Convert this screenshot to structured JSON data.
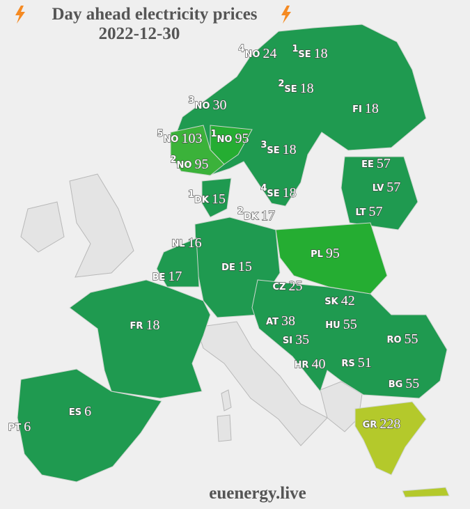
{
  "header": {
    "title": "Day ahead electricity prices",
    "date": "2022-12-30"
  },
  "footer": "euenergy.live",
  "zones": [
    {
      "sup": "4",
      "code": "NO",
      "price": "24"
    },
    {
      "sup": "1",
      "code": "SE",
      "price": "18"
    },
    {
      "sup": "2",
      "code": "SE",
      "price": "18"
    },
    {
      "sup": "3",
      "code": "NO",
      "price": "30"
    },
    {
      "code": "FI",
      "price": "18"
    },
    {
      "sup": "5",
      "code": "NO",
      "price": "103"
    },
    {
      "sup": "1",
      "code": "NO",
      "price": "95"
    },
    {
      "sup": "3",
      "code": "SE",
      "price": "18"
    },
    {
      "sup": "2",
      "code": "NO",
      "price": "95"
    },
    {
      "code": "EE",
      "price": "57"
    },
    {
      "code": "LV",
      "price": "57"
    },
    {
      "sup": "4",
      "code": "SE",
      "price": "18"
    },
    {
      "sup": "1",
      "code": "DK",
      "price": "15"
    },
    {
      "code": "LT",
      "price": "57"
    },
    {
      "sup": "2",
      "code": "DK",
      "price": "17"
    },
    {
      "code": "NL",
      "price": "16"
    },
    {
      "code": "PL",
      "price": "95"
    },
    {
      "code": "DE",
      "price": "15"
    },
    {
      "code": "BE",
      "price": "17"
    },
    {
      "code": "CZ",
      "price": "25"
    },
    {
      "code": "SK",
      "price": "42"
    },
    {
      "code": "AT",
      "price": "38"
    },
    {
      "code": "HU",
      "price": "55"
    },
    {
      "code": "FR",
      "price": "18"
    },
    {
      "code": "RO",
      "price": "55"
    },
    {
      "code": "SI",
      "price": "35"
    },
    {
      "code": "RS",
      "price": "51"
    },
    {
      "code": "HR",
      "price": "40"
    },
    {
      "code": "BG",
      "price": "55"
    },
    {
      "code": "ES",
      "price": "6"
    },
    {
      "code": "GR",
      "price": "228"
    },
    {
      "code": "PT",
      "price": "6"
    }
  ]
}
